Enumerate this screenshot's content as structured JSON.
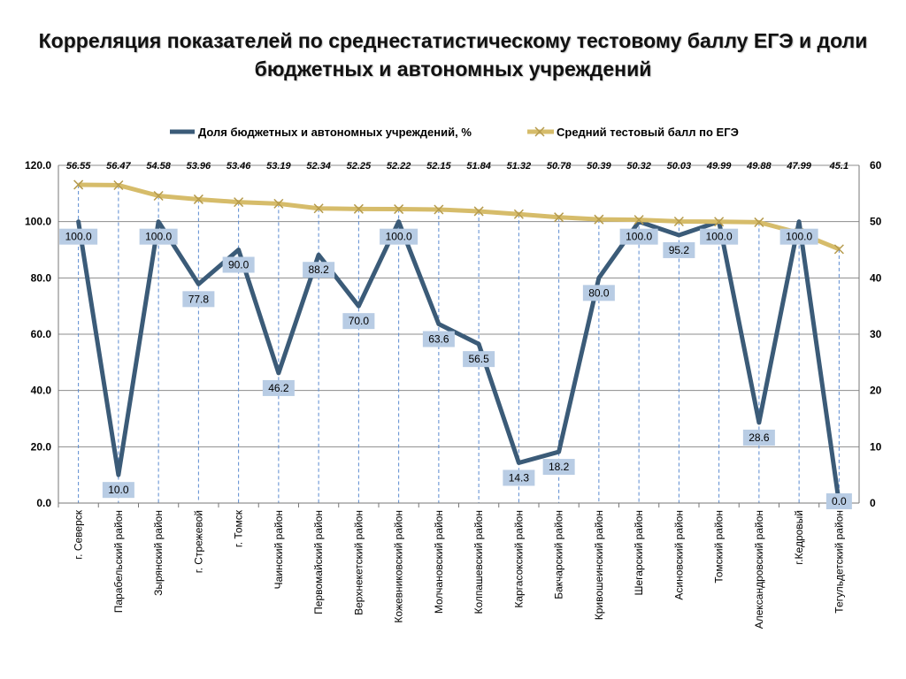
{
  "title": {
    "line1": "Корреляция показателей по среднестатистическому тестовому баллу ЕГЭ и доли",
    "line2": "бюджетных и автономных учреждений"
  },
  "chart_data": {
    "type": "line",
    "categories": [
      "г. Северск",
      "Парабельский район",
      "Зырянский район",
      "г. Стрежевой",
      "г. Томск",
      "Чаинский район",
      "Первомайский район",
      "Верхнекетский район",
      "Кожевниковский район",
      "Молчановский район",
      "Колпашевский район",
      "Каргасокский район",
      "Бакчарский район",
      "Кривошеинский район",
      "Шегарский район",
      "Асиновский район",
      "Томский район",
      "Александровский район",
      "г.Кедровый",
      "Тегульдетский район"
    ],
    "series": [
      {
        "name": "Доля бюджетных и автономных учреждений, %",
        "axis": "left",
        "color": "#3b5b78",
        "values": [
          100.0,
          10.0,
          100.0,
          77.8,
          90.0,
          46.2,
          88.2,
          70.0,
          100.0,
          63.6,
          56.5,
          14.3,
          18.2,
          80.0,
          100.0,
          95.2,
          100.0,
          28.6,
          100.0,
          0.0
        ],
        "labels": [
          "100.0",
          "10.0",
          "100.0",
          "77.8",
          "90.0",
          "46.2",
          "88.2",
          "70.0",
          "100.0",
          "63.6",
          "56.5",
          "14.3",
          "18.2",
          "80.0",
          "100.0",
          "95.2",
          "100.0",
          "28.6",
          "100.0",
          "0.0"
        ]
      },
      {
        "name": "Средний тестовый балл по ЕГЭ",
        "axis": "right",
        "color": "#d6bc6a",
        "values": [
          56.55,
          56.47,
          54.58,
          53.96,
          53.46,
          53.19,
          52.34,
          52.25,
          52.22,
          52.15,
          51.84,
          51.32,
          50.78,
          50.39,
          50.32,
          50.03,
          49.99,
          49.88,
          47.99,
          45.1
        ],
        "labels": [
          "56.55",
          "56.47",
          "54.58",
          "53.96",
          "53.46",
          "53.19",
          "52.34",
          "52.25",
          "52.22",
          "52.15",
          "51.84",
          "51.32",
          "50.78",
          "50.39",
          "50.32",
          "50.03",
          "49.99",
          "49.88",
          "47.99",
          "45.1"
        ]
      }
    ],
    "y_left": {
      "min": 0,
      "max": 120,
      "ticks": [
        "0.0",
        "20.0",
        "40.0",
        "60.0",
        "80.0",
        "100.0",
        "120.0"
      ]
    },
    "y_right": {
      "min": 0,
      "max": 60,
      "ticks": [
        "0",
        "10",
        "20",
        "30",
        "40",
        "50",
        "60"
      ]
    },
    "grid": true,
    "legend_position": "top"
  }
}
